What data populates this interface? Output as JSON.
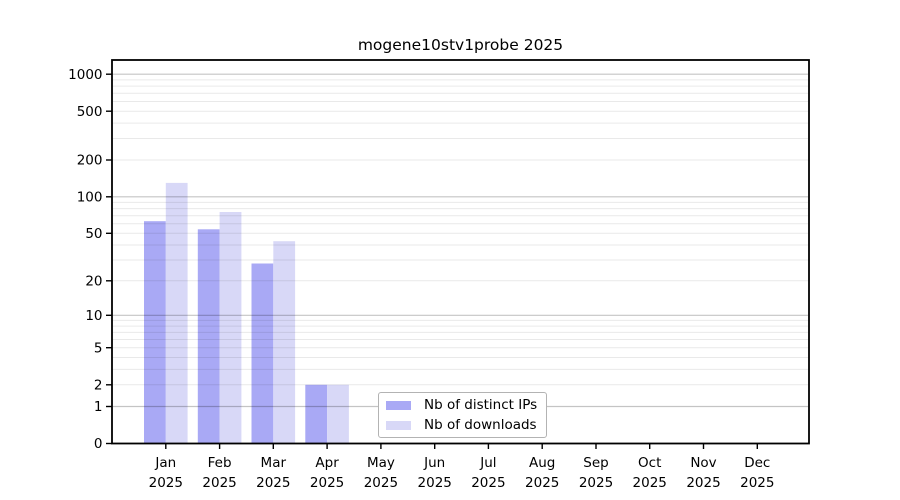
{
  "chart_data": {
    "type": "bar",
    "title": "mogene10stv1probe 2025",
    "categories": [
      "Jan",
      "Feb",
      "Mar",
      "Apr",
      "May",
      "Jun",
      "Jul",
      "Aug",
      "Sep",
      "Oct",
      "Nov",
      "Dec"
    ],
    "category_year": "2025",
    "series": [
      {
        "name": "Nb of distinct IPs",
        "color": "#a9a9f5",
        "values": [
          63,
          54,
          28,
          2,
          0,
          0,
          0,
          0,
          0,
          0,
          0,
          0
        ]
      },
      {
        "name": "Nb of downloads",
        "color": "#d8d8f7",
        "values": [
          130,
          75,
          43,
          2,
          0,
          0,
          0,
          0,
          0,
          0,
          0,
          0
        ]
      }
    ],
    "y_ticks": [
      0,
      1,
      2,
      5,
      10,
      20,
      50,
      100,
      200,
      500,
      1000
    ],
    "y_scale": "log10(1+value)",
    "ylim": [
      0,
      1300
    ],
    "grid": {
      "horizontal": true,
      "vertical": false,
      "minor_multiples": [
        2,
        3,
        4,
        5,
        6,
        7,
        8,
        9
      ]
    },
    "legend_position": "inside-bottom-center",
    "axis_color": "#000000",
    "major_grid_color": "#c6c6c6",
    "minor_grid_color": "#eaeaea",
    "background": "#ffffff"
  }
}
